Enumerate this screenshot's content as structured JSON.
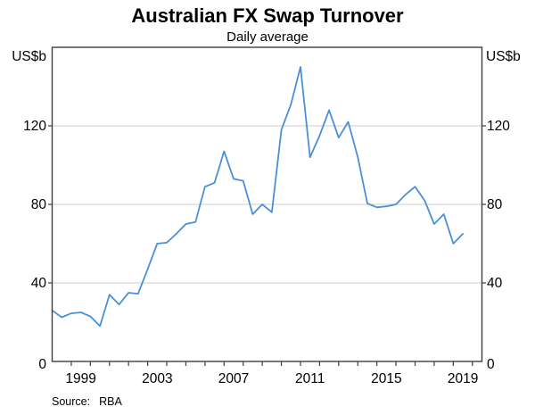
{
  "title": "Australian FX Swap Turnover",
  "subtitle": "Daily average",
  "source": {
    "label": "Source:",
    "value": "RBA"
  },
  "chart_data": {
    "type": "line",
    "title": "Australian FX Swap Turnover",
    "subtitle": "Daily average",
    "unit_left": "US$b",
    "unit_right": "US$b",
    "xlabel": "",
    "ylabel": "US$b",
    "x_axis_range": [
      1998.0,
      2020.5
    ],
    "y_axis_range": [
      0,
      160
    ],
    "y_ticks": [
      0,
      40,
      80,
      120
    ],
    "x_labeled_years": [
      1999,
      2003,
      2007,
      2011,
      2015,
      2019
    ],
    "x_minor_tick_years": [
      1999,
      2000,
      2001,
      2002,
      2003,
      2004,
      2005,
      2006,
      2007,
      2008,
      2009,
      2010,
      2011,
      2012,
      2013,
      2014,
      2015,
      2016,
      2017,
      2018,
      2019,
      2020
    ],
    "grid": "horizontal-gridlines-at-labeled-ticks",
    "legend": "none",
    "line_color": "#4a90d8",
    "grid_color": "#cdcdcd",
    "axis_color": "#3f3f3f",
    "text_color": "#000000",
    "series": [
      {
        "name": "Australian FX swap turnover, daily average (US$b, semiannual)",
        "x": [
          1998.0,
          1998.5,
          1999.0,
          1999.5,
          2000.0,
          2000.5,
          2001.0,
          2001.5,
          2002.0,
          2002.5,
          2003.0,
          2003.5,
          2004.0,
          2004.5,
          2005.0,
          2005.5,
          2006.0,
          2006.5,
          2007.0,
          2007.5,
          2008.0,
          2008.5,
          2009.0,
          2009.5,
          2010.0,
          2010.5,
          2011.0,
          2011.5,
          2012.0,
          2012.5,
          2013.0,
          2013.5,
          2014.0,
          2014.5,
          2015.0,
          2015.5,
          2016.0,
          2016.5,
          2017.0,
          2017.5,
          2018.0,
          2018.5,
          2019.0,
          2019.5
        ],
        "values": [
          26,
          22.5,
          24.5,
          25,
          23,
          18,
          34,
          29,
          35,
          34.5,
          47,
          60,
          60.5,
          65,
          70,
          71,
          89,
          91,
          107,
          93,
          92,
          75,
          80,
          76,
          118,
          131,
          150,
          104,
          115,
          128,
          114,
          122,
          104,
          80.5,
          78.5,
          79,
          80,
          85,
          89,
          82,
          70,
          75,
          60,
          65
        ]
      }
    ]
  }
}
